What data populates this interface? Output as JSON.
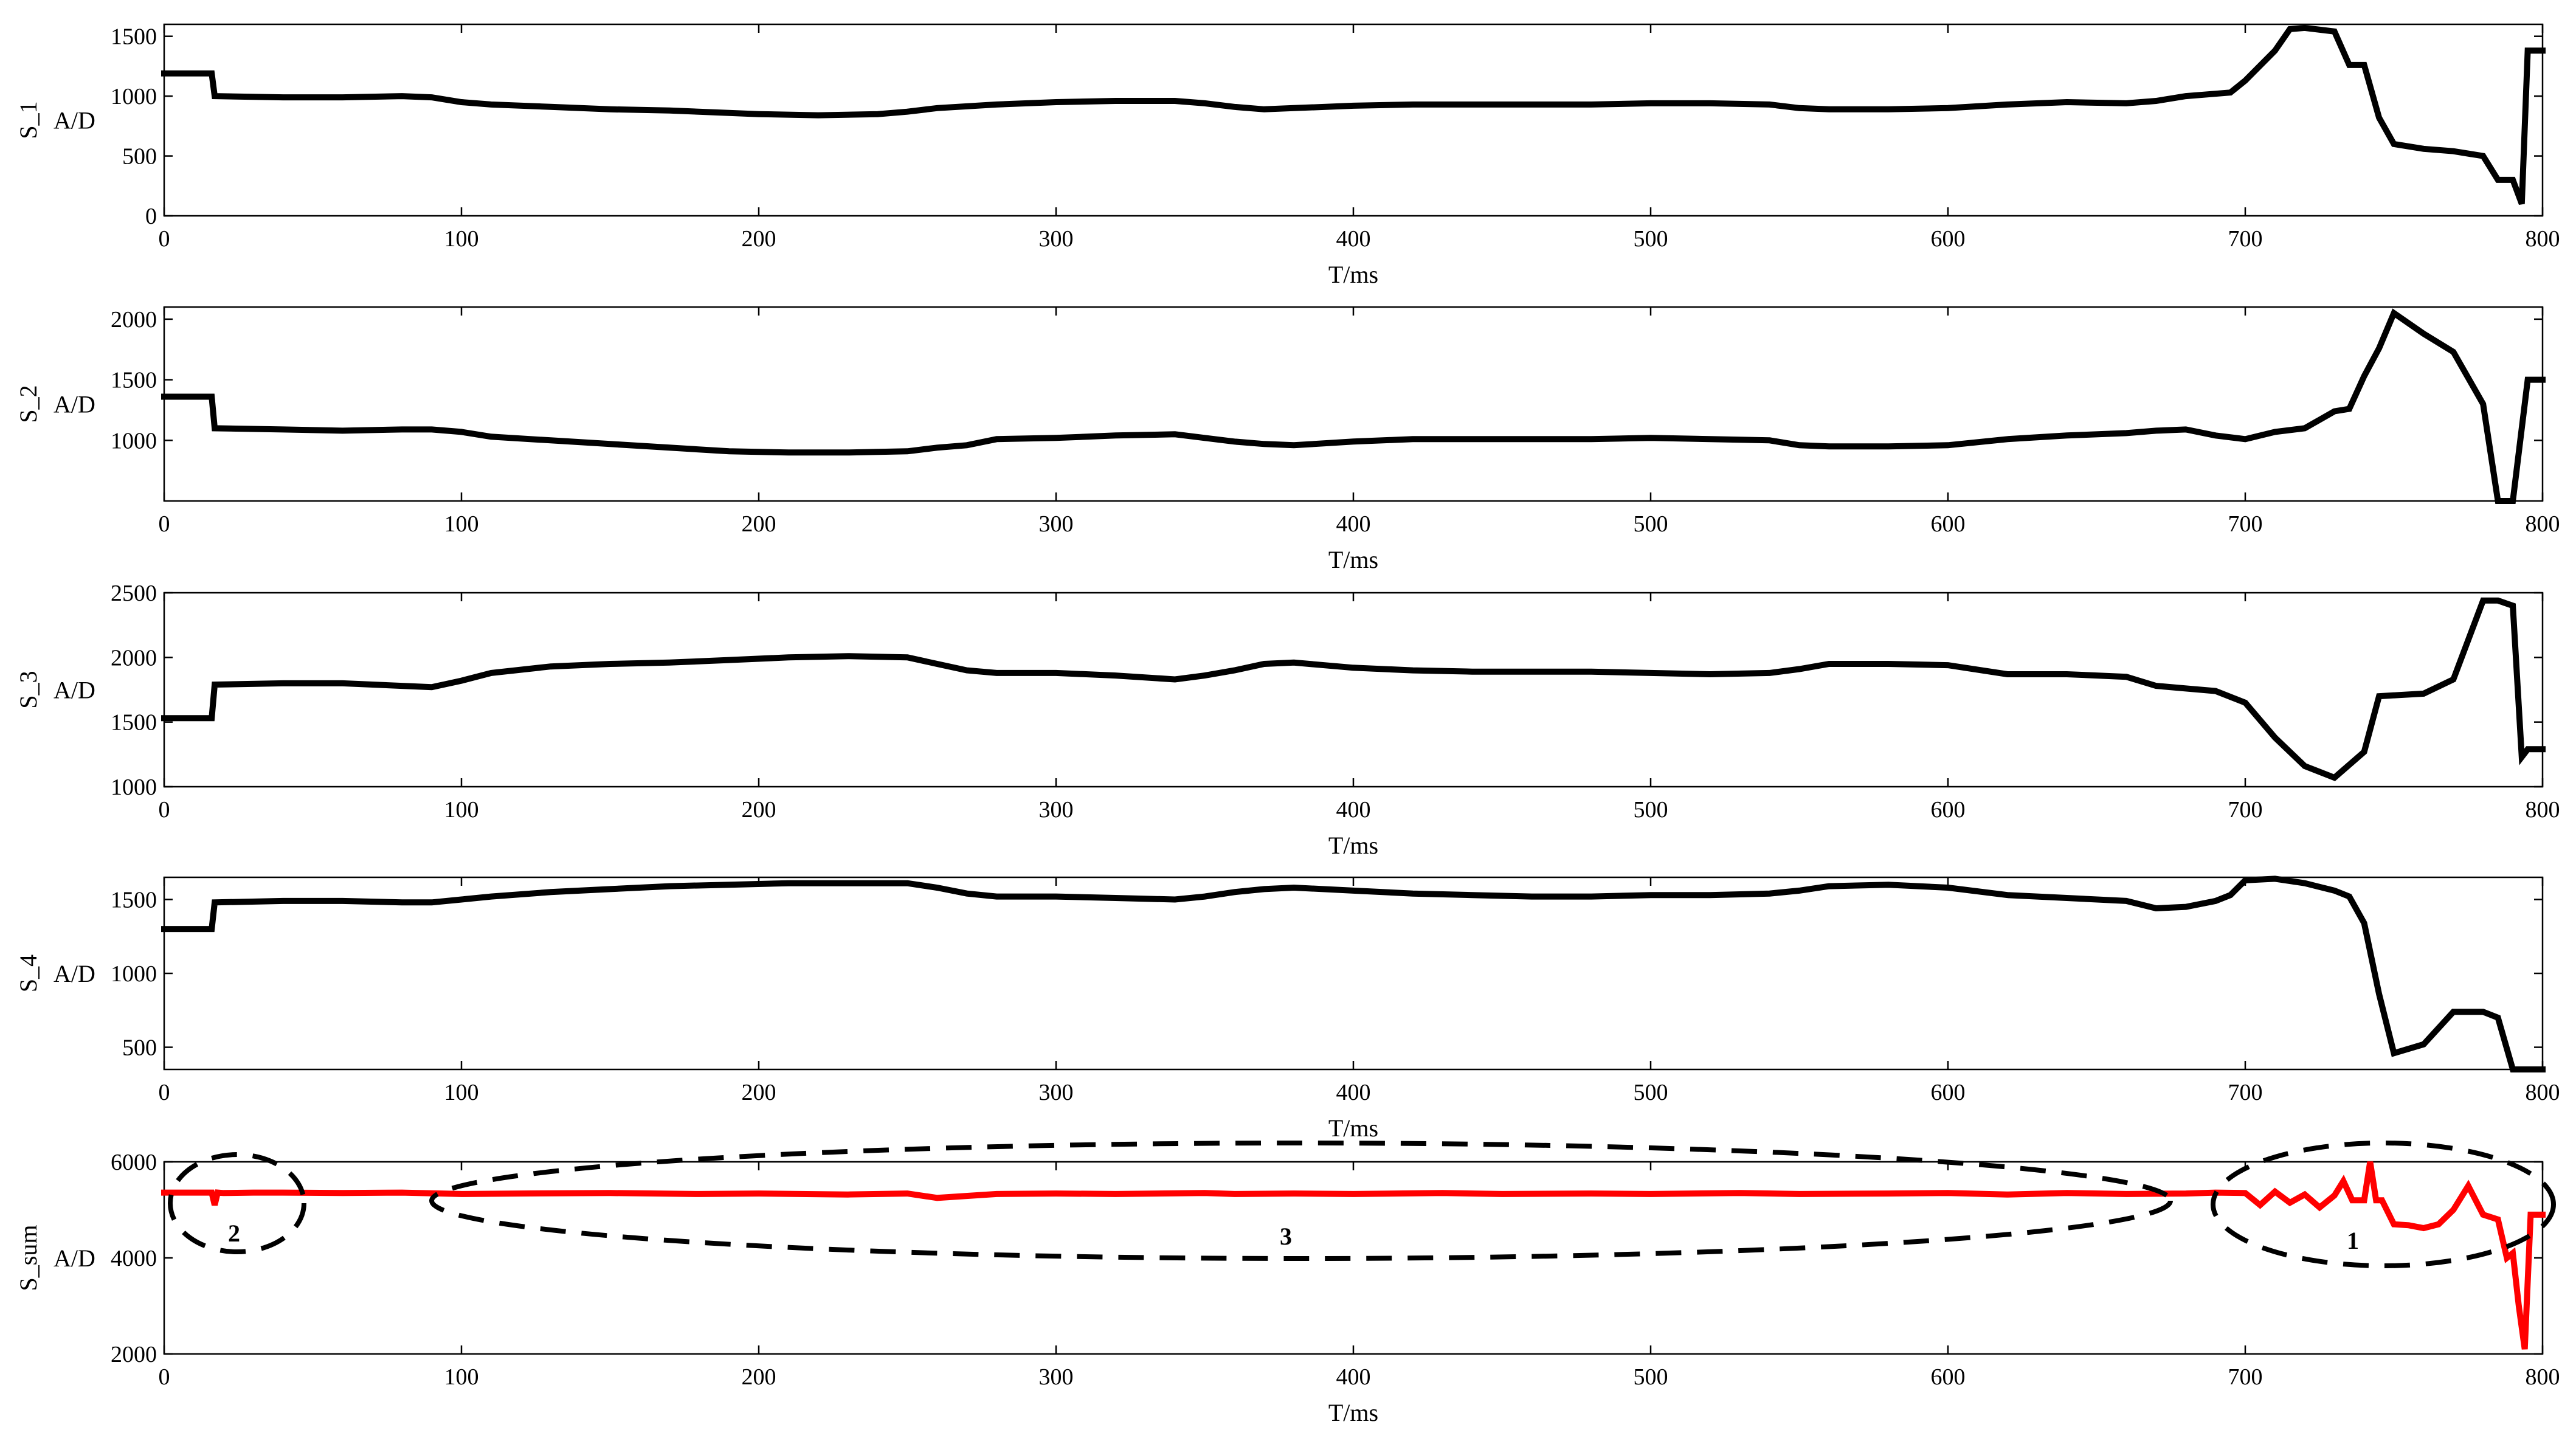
{
  "figure": {
    "colors": {
      "series": "#000000",
      "sum_series": "#ff0000",
      "annotation": "#000000"
    }
  },
  "chart_data": [
    {
      "type": "line",
      "xlabel": "T/ms",
      "ylabel_main": "S_1",
      "ylabel_unit": "A/D",
      "xlim": [
        0,
        800
      ],
      "ylim": [
        0,
        1600
      ],
      "xticks": [
        "0",
        "100",
        "200",
        "300",
        "400",
        "500",
        "600",
        "700",
        "800"
      ],
      "yticks": [
        "0",
        "500",
        "1000",
        "1500"
      ],
      "grid": false,
      "series": [
        {
          "color": "#000000",
          "x": [
            0,
            16,
            17,
            40,
            60,
            80,
            90,
            100,
            110,
            130,
            150,
            170,
            190,
            200,
            220,
            240,
            250,
            260,
            280,
            300,
            320,
            340,
            350,
            360,
            370,
            380,
            400,
            420,
            440,
            460,
            480,
            500,
            520,
            540,
            550,
            560,
            580,
            600,
            620,
            640,
            660,
            670,
            680,
            690,
            695,
            700,
            710,
            715,
            720,
            730,
            735,
            740,
            745,
            750,
            760,
            770,
            780,
            785,
            790,
            793,
            795,
            800
          ],
          "y": [
            1190,
            1190,
            1000,
            990,
            990,
            1000,
            990,
            950,
            930,
            910,
            890,
            880,
            860,
            850,
            840,
            850,
            870,
            900,
            930,
            950,
            960,
            960,
            940,
            910,
            890,
            900,
            920,
            930,
            930,
            930,
            930,
            940,
            940,
            930,
            900,
            890,
            890,
            900,
            930,
            950,
            940,
            960,
            1000,
            1020,
            1030,
            1130,
            1380,
            1560,
            1570,
            1540,
            1260,
            1260,
            820,
            600,
            560,
            540,
            500,
            300,
            300,
            100,
            1380,
            1380
          ]
        }
      ]
    },
    {
      "type": "line",
      "xlabel": "T/ms",
      "ylabel_main": "S_2",
      "ylabel_unit": "A/D",
      "xlim": [
        0,
        800
      ],
      "ylim": [
        500,
        2100
      ],
      "xticks": [
        "0",
        "100",
        "200",
        "300",
        "400",
        "500",
        "600",
        "700",
        "800"
      ],
      "yticks": [
        "1000",
        "1500",
        "2000"
      ],
      "grid": false,
      "series": [
        {
          "color": "#000000",
          "x": [
            0,
            16,
            17,
            40,
            60,
            80,
            90,
            100,
            110,
            130,
            150,
            170,
            190,
            210,
            230,
            250,
            260,
            270,
            280,
            300,
            320,
            340,
            350,
            360,
            370,
            380,
            400,
            420,
            440,
            460,
            480,
            500,
            520,
            540,
            550,
            560,
            580,
            600,
            620,
            640,
            660,
            670,
            680,
            690,
            700,
            710,
            720,
            730,
            735,
            740,
            745,
            750,
            760,
            770,
            780,
            785,
            790,
            795,
            800
          ],
          "y": [
            1360,
            1360,
            1100,
            1090,
            1080,
            1090,
            1090,
            1070,
            1030,
            1000,
            970,
            940,
            910,
            900,
            900,
            910,
            940,
            960,
            1010,
            1020,
            1040,
            1050,
            1020,
            990,
            970,
            960,
            990,
            1010,
            1010,
            1010,
            1010,
            1020,
            1010,
            1000,
            960,
            950,
            950,
            960,
            1010,
            1040,
            1060,
            1080,
            1090,
            1040,
            1010,
            1070,
            1100,
            1240,
            1260,
            1530,
            1760,
            2050,
            1880,
            1730,
            1300,
            500,
            500,
            1500,
            1500
          ]
        }
      ]
    },
    {
      "type": "line",
      "xlabel": "T/ms",
      "ylabel_main": "S_3",
      "ylabel_unit": "A/D",
      "xlim": [
        0,
        800
      ],
      "ylim": [
        1000,
        2500
      ],
      "xticks": [
        "0",
        "100",
        "200",
        "300",
        "400",
        "500",
        "600",
        "700",
        "800"
      ],
      "yticks": [
        "1000",
        "1500",
        "2000",
        "2500"
      ],
      "grid": false,
      "series": [
        {
          "color": "#000000",
          "x": [
            0,
            16,
            17,
            40,
            60,
            80,
            90,
            100,
            110,
            130,
            150,
            170,
            190,
            210,
            230,
            250,
            260,
            270,
            280,
            300,
            320,
            340,
            350,
            360,
            370,
            380,
            400,
            420,
            440,
            460,
            480,
            500,
            520,
            540,
            550,
            560,
            580,
            600,
            620,
            640,
            660,
            670,
            680,
            690,
            700,
            710,
            720,
            730,
            740,
            745,
            760,
            770,
            780,
            785,
            790,
            793,
            795,
            800
          ],
          "y": [
            1530,
            1530,
            1790,
            1800,
            1800,
            1780,
            1770,
            1820,
            1880,
            1930,
            1950,
            1960,
            1980,
            2000,
            2010,
            2000,
            1950,
            1900,
            1880,
            1880,
            1860,
            1830,
            1860,
            1900,
            1950,
            1960,
            1920,
            1900,
            1890,
            1890,
            1890,
            1880,
            1870,
            1880,
            1910,
            1950,
            1950,
            1940,
            1870,
            1870,
            1850,
            1780,
            1760,
            1740,
            1650,
            1380,
            1160,
            1070,
            1270,
            1700,
            1720,
            1830,
            2440,
            2440,
            2400,
            1230,
            1290,
            1290
          ]
        }
      ]
    },
    {
      "type": "line",
      "xlabel": "T/ms",
      "ylabel_main": "S_4",
      "ylabel_unit": "A/D",
      "xlim": [
        0,
        800
      ],
      "ylim": [
        350,
        1650
      ],
      "xticks": [
        "0",
        "100",
        "200",
        "300",
        "400",
        "500",
        "600",
        "700",
        "800"
      ],
      "yticks": [
        "500",
        "1000",
        "1500"
      ],
      "grid": false,
      "series": [
        {
          "color": "#000000",
          "x": [
            0,
            16,
            17,
            40,
            60,
            80,
            90,
            100,
            110,
            130,
            150,
            170,
            190,
            210,
            230,
            250,
            260,
            270,
            280,
            300,
            320,
            340,
            350,
            360,
            370,
            380,
            400,
            420,
            440,
            460,
            480,
            500,
            520,
            540,
            550,
            560,
            580,
            600,
            620,
            640,
            660,
            670,
            680,
            690,
            695,
            700,
            710,
            720,
            730,
            735,
            740,
            745,
            750,
            760,
            770,
            780,
            785,
            790,
            795,
            800
          ],
          "y": [
            1300,
            1300,
            1480,
            1490,
            1490,
            1480,
            1480,
            1500,
            1520,
            1550,
            1570,
            1590,
            1600,
            1610,
            1610,
            1610,
            1580,
            1540,
            1520,
            1520,
            1510,
            1500,
            1520,
            1550,
            1570,
            1580,
            1560,
            1540,
            1530,
            1520,
            1520,
            1530,
            1530,
            1540,
            1560,
            1590,
            1600,
            1580,
            1530,
            1510,
            1490,
            1440,
            1450,
            1490,
            1530,
            1630,
            1640,
            1610,
            1560,
            1520,
            1340,
            860,
            460,
            520,
            740,
            740,
            700,
            350,
            350,
            350
          ]
        }
      ]
    },
    {
      "type": "line",
      "xlabel": "T/ms",
      "ylabel_main": "S_sum",
      "ylabel_unit": "A/D",
      "xlim": [
        0,
        800
      ],
      "ylim": [
        2000,
        6000
      ],
      "xticks": [
        "0",
        "100",
        "200",
        "300",
        "400",
        "500",
        "600",
        "700",
        "800"
      ],
      "yticks": [
        "2000",
        "4000",
        "6000"
      ],
      "grid": false,
      "annotations": [
        "2",
        "3",
        "1"
      ],
      "series": [
        {
          "color": "#ff0000",
          "x": [
            0,
            10,
            16,
            17,
            18,
            20,
            30,
            40,
            60,
            80,
            100,
            120,
            150,
            180,
            200,
            230,
            250,
            260,
            280,
            300,
            320,
            350,
            360,
            380,
            400,
            430,
            450,
            480,
            500,
            530,
            550,
            580,
            600,
            620,
            640,
            660,
            680,
            690,
            700,
            705,
            710,
            715,
            720,
            725,
            730,
            733,
            736,
            740,
            742,
            744,
            746,
            750,
            755,
            760,
            765,
            770,
            775,
            780,
            785,
            788,
            790,
            792,
            794,
            796,
            800
          ],
          "y": [
            5360,
            5360,
            5360,
            5100,
            5360,
            5350,
            5360,
            5360,
            5350,
            5360,
            5330,
            5340,
            5350,
            5330,
            5340,
            5320,
            5340,
            5250,
            5330,
            5340,
            5330,
            5350,
            5330,
            5340,
            5330,
            5350,
            5330,
            5340,
            5330,
            5350,
            5330,
            5340,
            5350,
            5320,
            5350,
            5330,
            5340,
            5360,
            5350,
            5100,
            5380,
            5150,
            5320,
            5050,
            5300,
            5600,
            5200,
            5200,
            6100,
            5200,
            5200,
            4700,
            4680,
            4620,
            4700,
            5000,
            5500,
            4900,
            4800,
            4000,
            4100,
            3000,
            2100,
            4900,
            4900
          ]
        }
      ]
    }
  ]
}
